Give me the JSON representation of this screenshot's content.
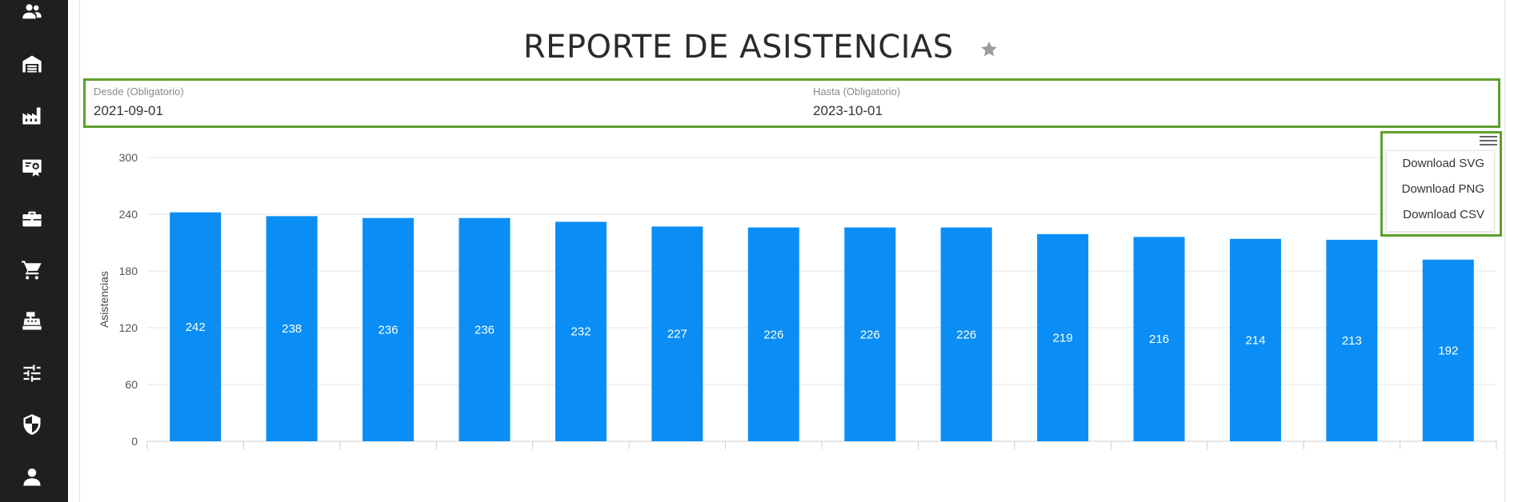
{
  "sidebar": {
    "items": [
      {
        "icon": "people-icon"
      },
      {
        "icon": "warehouse-icon"
      },
      {
        "icon": "factory-icon"
      },
      {
        "icon": "certificate-icon"
      },
      {
        "icon": "briefcase-icon"
      },
      {
        "icon": "cart-icon"
      },
      {
        "icon": "cash-register-icon"
      },
      {
        "icon": "sliders-icon"
      },
      {
        "icon": "shield-icon"
      },
      {
        "icon": "user-icon"
      }
    ]
  },
  "header": {
    "title": "REPORTE DE ASISTENCIAS",
    "favorite_icon": "star-icon"
  },
  "filters": {
    "desde": {
      "label": "Desde (Obligatorio)",
      "value": "2021-09-01"
    },
    "hasta": {
      "label": "Hasta (Obligatorio)",
      "value": "2023-10-01"
    }
  },
  "export_menu": {
    "icon": "hamburger-icon",
    "items": [
      "Download SVG",
      "Download PNG",
      "Download CSV"
    ]
  },
  "colors": {
    "bar": "#0a8ef5",
    "highlight": "#5ea02c",
    "sidebar": "#1f1f1f"
  },
  "chart_data": {
    "type": "bar",
    "title": "",
    "xlabel": "",
    "ylabel": "Asistencias",
    "categories": [
      "",
      "",
      "",
      "",
      "",
      "",
      "",
      "",
      "",
      "",
      "",
      "",
      "",
      ""
    ],
    "values": [
      242,
      238,
      236,
      236,
      232,
      227,
      226,
      226,
      226,
      219,
      216,
      214,
      213,
      192
    ],
    "ylim": [
      0,
      300
    ],
    "yticks": [
      0,
      60,
      120,
      180,
      240,
      300
    ],
    "grid": true,
    "data_labels": true
  }
}
